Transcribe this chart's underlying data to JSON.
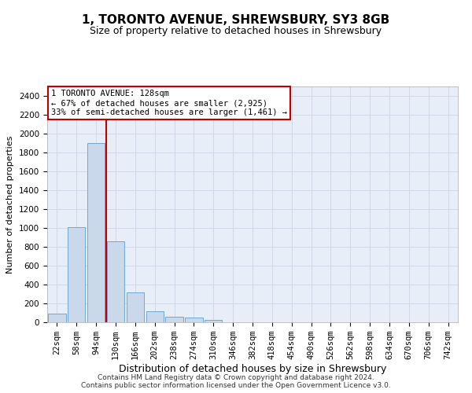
{
  "title": "1, TORONTO AVENUE, SHREWSBURY, SY3 8GB",
  "subtitle": "Size of property relative to detached houses in Shrewsbury",
  "xlabel": "Distribution of detached houses by size in Shrewsbury",
  "ylabel": "Number of detached properties",
  "bar_labels": [
    "22sqm",
    "58sqm",
    "94sqm",
    "130sqm",
    "166sqm",
    "202sqm",
    "238sqm",
    "274sqm",
    "310sqm",
    "346sqm",
    "382sqm",
    "418sqm",
    "454sqm",
    "490sqm",
    "526sqm",
    "562sqm",
    "598sqm",
    "634sqm",
    "670sqm",
    "706sqm",
    "742sqm"
  ],
  "bar_values": [
    95,
    1010,
    1900,
    860,
    315,
    115,
    55,
    48,
    25,
    0,
    0,
    0,
    0,
    0,
    0,
    0,
    0,
    0,
    0,
    0,
    0
  ],
  "bar_color": "#c9d9eb",
  "bar_edge_color": "#6fa8d6",
  "vline_x_index": 3,
  "vline_color": "#c00000",
  "annotation_text": "1 TORONTO AVENUE: 128sqm\n← 67% of detached houses are smaller (2,925)\n33% of semi-detached houses are larger (1,461) →",
  "annotation_box_color": "#ffffff",
  "annotation_box_edge_color": "#c00000",
  "ylim": [
    0,
    2500
  ],
  "yticks": [
    0,
    200,
    400,
    600,
    800,
    1000,
    1200,
    1400,
    1600,
    1800,
    2000,
    2200,
    2400
  ],
  "footer": "Contains HM Land Registry data © Crown copyright and database right 2024.\nContains public sector information licensed under the Open Government Licence v3.0.",
  "grid_color": "#d0d8e8",
  "background_color": "#e8eef8",
  "title_fontsize": 11,
  "subtitle_fontsize": 9,
  "ylabel_fontsize": 8,
  "xlabel_fontsize": 9,
  "tick_fontsize": 7.5,
  "footer_fontsize": 6.5
}
